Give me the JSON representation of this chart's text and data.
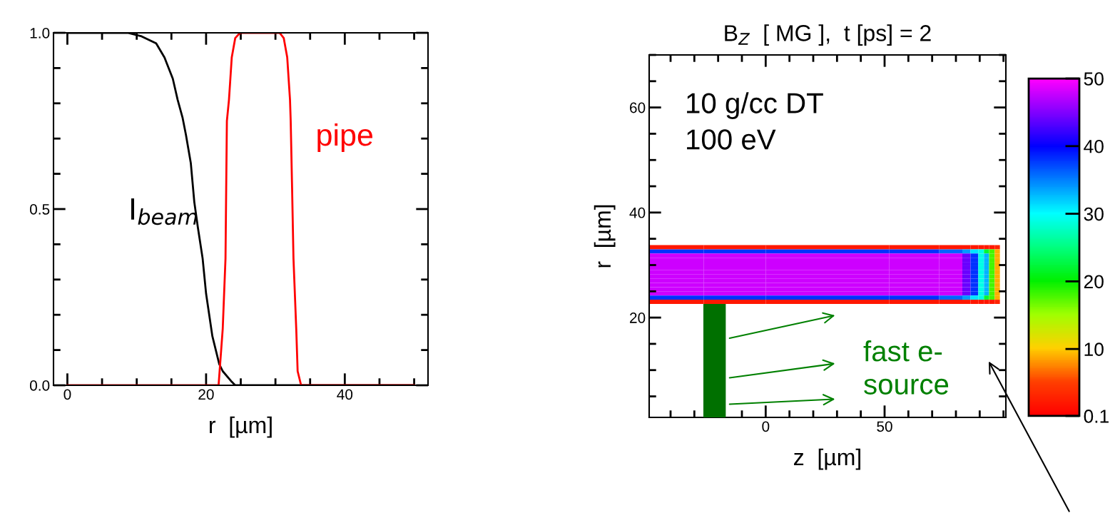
{
  "chart_data": [
    {
      "type": "line",
      "xlabel": "r  [µm]",
      "xlim": [
        -2,
        52
      ],
      "ylim": [
        0,
        1
      ],
      "xticks": [
        0,
        20,
        40
      ],
      "yticks": [
        {
          "value": 0,
          "label": "0.0"
        },
        {
          "value": 0.5,
          "label": "0.5"
        },
        {
          "value": 1,
          "label": "1.0"
        }
      ],
      "grid": false,
      "marker": "none",
      "line_style": "solid",
      "series": [
        {
          "name": "I$_{beam}$",
          "color": "#000000",
          "x": [
            0,
            8.7,
            10.7,
            12.8,
            14.0,
            15.2,
            15.9,
            16.6,
            17.1,
            17.8,
            18.3,
            18.8,
            19.5,
            20.0,
            20.9,
            21.9,
            22.4,
            23.7,
            24.2,
            50
          ],
          "values": [
            1,
            1,
            0.99,
            0.97,
            0.93,
            0.87,
            0.81,
            0.76,
            0.71,
            0.63,
            0.52,
            0.45,
            0.36,
            0.26,
            0.14,
            0.06,
            0.04,
            0.01,
            0,
            0
          ]
        },
        {
          "name": "pipe",
          "color": "#ff0000",
          "x": [
            0,
            21.8,
            22.4,
            22.6,
            22.8,
            22.9,
            23.0,
            23.3,
            23.5,
            23.7,
            24.2,
            24.9,
            30.6,
            31.2,
            31.7,
            32.1,
            32.2,
            32.4,
            32.6,
            33.0,
            33.2,
            33.7,
            50
          ],
          "values": [
            0,
            0,
            0.16,
            0.26,
            0.36,
            0.56,
            0.75,
            0.81,
            0.87,
            0.93,
            0.985,
            1,
            1,
            0.985,
            0.93,
            0.81,
            0.75,
            0.56,
            0.36,
            0.16,
            0.04,
            0,
            0
          ]
        }
      ]
    },
    {
      "type": "heatmap",
      "title": "B$_{Z}$  [ MG ],  t [ps] = 2",
      "xlabel": "z  [µm]",
      "ylabel": "r  [µm]",
      "xlim": [
        -49,
        101
      ],
      "ylim": [
        1,
        70
      ],
      "xticks": [
        0,
        50
      ],
      "yticks": [
        20,
        40,
        60
      ],
      "x": [
        -39,
        -13,
        13,
        39,
        65,
        81,
        84.4,
        87.9,
        90.9,
        92.7,
        95.2,
        97.4
      ],
      "y": [
        33.4,
        32.6,
        31.8,
        31.0,
        30.2,
        29.4,
        28.6,
        27.8,
        27.0,
        26.2,
        25.4,
        24.6,
        23.8,
        23.0
      ],
      "cells": [
        [
          2,
          2,
          2,
          2,
          2,
          2,
          2,
          2,
          2,
          2,
          2,
          3
        ],
        [
          38,
          38,
          38,
          38,
          38,
          36,
          34,
          31,
          29,
          22,
          18,
          9
        ],
        [
          48,
          48,
          48,
          48,
          48,
          48,
          44,
          38,
          29,
          33,
          18,
          9
        ],
        [
          48,
          48,
          48,
          48,
          48,
          48,
          44,
          38,
          29,
          33,
          18,
          9
        ],
        [
          48,
          48,
          48,
          48,
          48,
          48,
          44,
          38,
          29,
          33,
          18,
          9
        ],
        [
          48,
          48,
          48,
          48,
          48,
          48,
          44,
          38,
          29,
          33,
          18,
          9
        ],
        [
          48,
          48,
          48,
          48,
          48,
          48,
          44,
          38,
          29,
          33,
          18,
          9
        ],
        [
          48,
          48,
          48,
          48,
          48,
          48,
          44,
          38,
          29,
          33,
          18,
          9
        ],
        [
          48,
          48,
          48,
          48,
          48,
          48,
          44,
          38,
          29,
          33,
          18,
          9
        ],
        [
          48,
          48,
          48,
          48,
          48,
          48,
          44,
          38,
          29,
          33,
          18,
          9
        ],
        [
          48,
          48,
          48,
          48,
          48,
          48,
          44,
          38,
          29,
          33,
          18,
          9
        ],
        [
          48,
          48,
          48,
          48,
          48,
          48,
          44,
          38,
          29,
          33,
          18,
          9
        ],
        [
          38,
          38,
          38,
          38,
          38,
          36,
          34,
          31,
          29,
          22,
          18,
          9
        ],
        [
          2,
          2,
          2,
          2,
          2,
          2,
          2,
          2,
          2,
          2,
          2,
          3
        ]
      ],
      "clim": [
        0.1,
        50
      ],
      "cticks": [
        {
          "value": 0.1,
          "label": "0.1"
        },
        10,
        20,
        30,
        40,
        50
      ],
      "colors": [
        "#ff0000",
        "#ff4000",
        "#ffd000",
        "#a0ff00",
        "#00f000",
        "#00ff80",
        "#00ffff",
        "#0080ff",
        "#0000ff",
        "#8000ff",
        "#ff00ff"
      ],
      "annotations": [
        "10 g/cc DT",
        "100 eV",
        "fast e-\nsource"
      ]
    }
  ]
}
